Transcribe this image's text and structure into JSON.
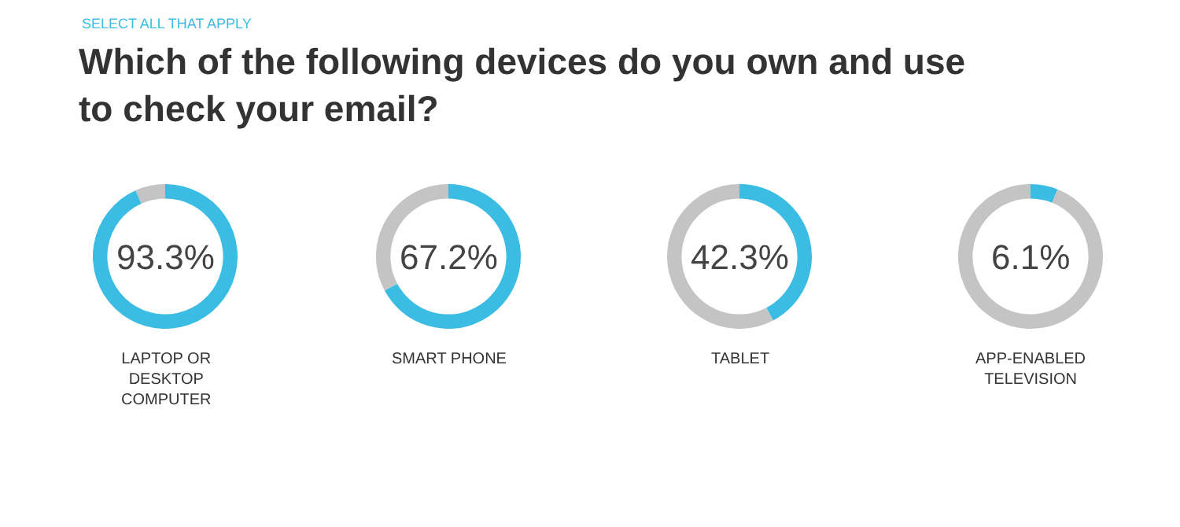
{
  "chart_data": [
    {
      "type": "other",
      "subtitle": "SELECT ALL THAT APPLY",
      "title": "Which of the following devices do you own and use to check your email?"
    },
    {
      "type": "donut",
      "title": "LAPTOP OR DESKTOP COMPUTER",
      "categories": [
        null,
        null
      ],
      "values": [
        93.3,
        6.7
      ],
      "colors": [
        "#3bbde3",
        "#c4c4c4"
      ],
      "value_labels": [
        "93.3%",
        null
      ]
    },
    {
      "type": "donut",
      "title": "SMART PHONE",
      "categories": [
        null,
        null
      ],
      "values": [
        67.2,
        32.8
      ],
      "colors": [
        "#3bbde3",
        "#c4c4c4"
      ],
      "value_labels": [
        "67.2%",
        null
      ]
    },
    {
      "type": "donut",
      "title": "TABLET",
      "categories": [
        null,
        null
      ],
      "values": [
        42.3,
        57.7
      ],
      "colors": [
        "#3bbde3",
        "#c4c4c4"
      ],
      "value_labels": [
        "42.3%",
        null
      ]
    },
    {
      "type": "donut",
      "title": "APP-ENABLED TELEVISION",
      "categories": [
        null,
        null
      ],
      "values": [
        6.1,
        93.9
      ],
      "colors": [
        "#3bbde3",
        "#c4c4c4"
      ],
      "value_labels": [
        "6.1%",
        null
      ]
    }
  ]
}
